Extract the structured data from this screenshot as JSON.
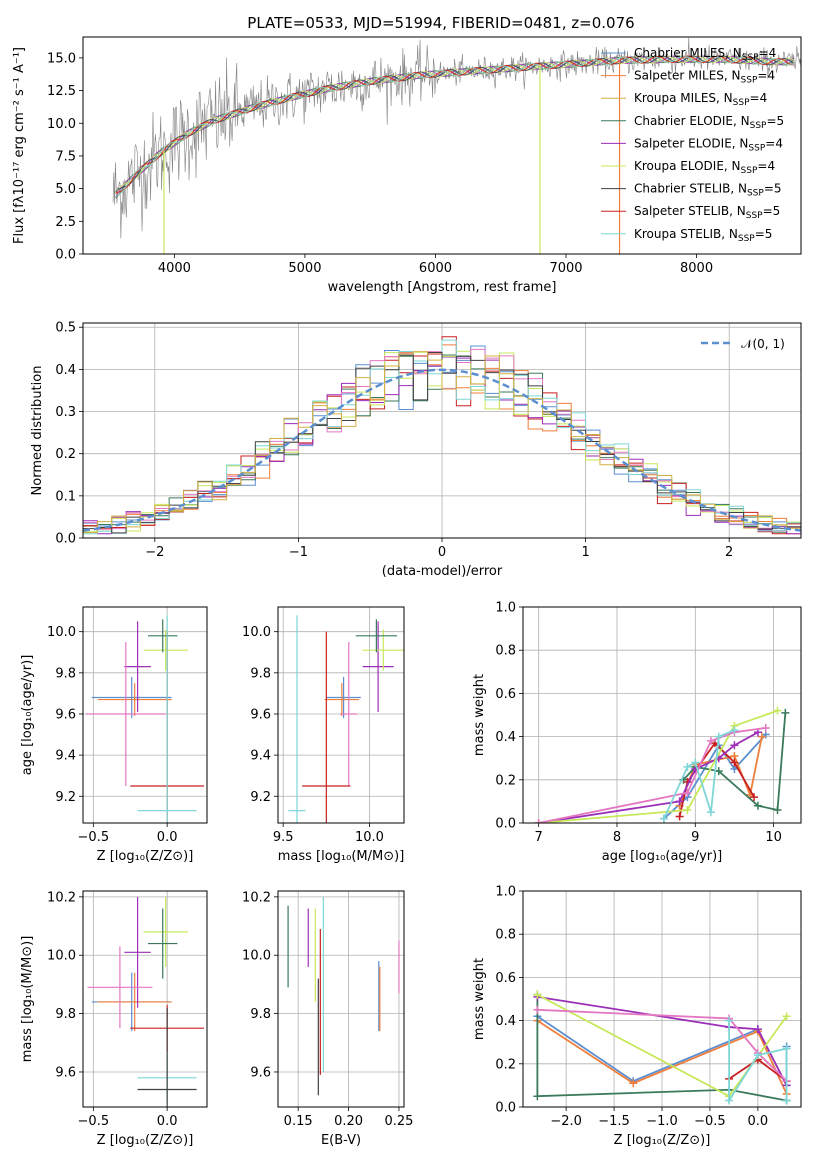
{
  "colors": {
    "gray": "#808080",
    "palette": [
      "#5b8fd0",
      "#f07f3c",
      "#3a9a3a",
      "#c82020",
      "#9c2fb8",
      "#d4b043",
      "#e377c2",
      "#7f7f7f",
      "#c7e85a",
      "#7fd6d6"
    ]
  },
  "chart_data": [
    {
      "type": "line",
      "title": "PLATE=0533, MJD=51994, FIBERID=0481, z=0.076",
      "xlabel": "wavelength [Angstrom, rest frame]",
      "ylabel": "Flux [fλ10⁻¹⁷ erg cm⁻² s⁻¹ A⁻¹]",
      "xlim": [
        3300,
        8800
      ],
      "ylim": [
        0,
        16.6
      ],
      "xticks": [
        4000,
        5000,
        6000,
        7000,
        8000
      ],
      "yticks": [
        0.0,
        2.5,
        5.0,
        7.5,
        10.0,
        12.5,
        15.0
      ],
      "grid": false,
      "legend_position": "upper-right",
      "legend": [
        {
          "label": "Chabrier MILES, N",
          "sub": "SSP",
          "suffix": "=4",
          "color": "#5b8fd0"
        },
        {
          "label": "Salpeter MILES, N",
          "sub": "SSP",
          "suffix": "=4",
          "color": "#f07f3c"
        },
        {
          "label": "Kroupa MILES, N",
          "sub": "SSP",
          "suffix": "=4",
          "color": "#d4b043"
        },
        {
          "label": "Chabrier ELODIE, N",
          "sub": "SSP",
          "suffix": "=5",
          "color": "#3a7a5a"
        },
        {
          "label": "Salpeter ELODIE, N",
          "sub": "SSP",
          "suffix": "=4",
          "color": "#9c2fb8"
        },
        {
          "label": "Kroupa ELODIE, N",
          "sub": "SSP",
          "suffix": "=4",
          "color": "#c7e85a"
        },
        {
          "label": "Chabrier STELIB, N",
          "sub": "SSP",
          "suffix": "=5",
          "color": "#404040"
        },
        {
          "label": "Salpeter STELIB, N",
          "sub": "SSP",
          "suffix": "=5",
          "color": "#c82020"
        },
        {
          "label": "Kroupa STELIB, N",
          "sub": "SSP",
          "suffix": "=5",
          "color": "#7fd6d6"
        }
      ],
      "continuum": {
        "x": [
          3550,
          3700,
          3900,
          4100,
          4300,
          4600,
          4900,
          5200,
          5500,
          5900,
          6300,
          6700,
          7000,
          7400,
          7800,
          8200,
          8600
        ],
        "y": [
          4.5,
          6.0,
          7.8,
          9.2,
          10.2,
          11.2,
          12.0,
          12.7,
          13.2,
          13.7,
          14.0,
          14.3,
          14.5,
          14.8,
          14.9,
          14.9,
          14.7
        ]
      },
      "spikes": [
        {
          "x": 6800,
          "y": 0
        },
        {
          "x": 7410,
          "y": 0
        },
        {
          "x": 3920,
          "y": 0
        }
      ]
    },
    {
      "type": "step",
      "xlabel": "(data-model)/error",
      "ylabel": "Normed distribution",
      "xlim": [
        -2.5,
        2.5
      ],
      "ylim": [
        0,
        0.51
      ],
      "xticks": [
        -2,
        -1,
        0,
        1,
        2
      ],
      "xtick_labels": [
        "−2",
        "−1",
        "0",
        "1",
        "2"
      ],
      "yticks": [
        0.0,
        0.1,
        0.2,
        0.3,
        0.4,
        0.5
      ],
      "grid": true,
      "legend_position": "upper-right",
      "legend": [
        {
          "label": "𝒩(0, 1)",
          "color": "#5b8fd0",
          "dashed": true
        }
      ],
      "bin_width": 0.1,
      "series_colors": [
        "#5b8fd0",
        "#f07f3c",
        "#3a7a5a",
        "#c82020",
        "#9c2fb8",
        "#c7e85a",
        "#e377c2",
        "#7fd6d6",
        "#404040",
        "#d4b043"
      ]
    },
    {
      "type": "errorbar",
      "xlabel": "Z [log₁₀(Z/Z⊙)]",
      "ylabel": "age  [log₁₀(age/yr)]",
      "xlim": [
        -0.57,
        0.27
      ],
      "ylim": [
        9.07,
        10.12
      ],
      "xticks": [
        -0.5,
        0.0
      ],
      "xtick_labels": [
        "−0.5",
        "0.0"
      ],
      "yticks": [
        9.2,
        9.4,
        9.6,
        9.8,
        10.0
      ],
      "grid": true,
      "points": [
        {
          "x": -0.24,
          "y": 9.68,
          "xerr": 0.27,
          "yerr": 0.1,
          "color": "#5b8fd0"
        },
        {
          "x": -0.22,
          "y": 9.67,
          "xerr": 0.25,
          "yerr": 0.08,
          "color": "#f07f3c"
        },
        {
          "x": -0.2,
          "y": 9.83,
          "xerr": 0.09,
          "yerr": 0.22,
          "color": "#9c2fb8"
        },
        {
          "x": -0.28,
          "y": 9.6,
          "xerr": 0.27,
          "yerr": 0.35,
          "color": "#e377c2"
        },
        {
          "x": -0.01,
          "y": 9.91,
          "xerr": 0.15,
          "yerr": 0.1,
          "color": "#c7e85a"
        },
        {
          "x": -0.03,
          "y": 9.98,
          "xerr": 0.1,
          "yerr": 0.08,
          "color": "#3a7a5a"
        },
        {
          "x": 0.0,
          "y": 9.25,
          "xerr": 0.25,
          "yerr": 0.75,
          "color": "#c82020"
        },
        {
          "x": 0.0,
          "y": 9.13,
          "xerr": 0.2,
          "yerr": 0.95,
          "color": "#7fd6d6"
        }
      ]
    },
    {
      "type": "errorbar",
      "xlabel": "mass [log₁₀(M/M⊙)]",
      "ylabel": "",
      "xlim": [
        9.47,
        10.2
      ],
      "ylim": [
        9.07,
        10.12
      ],
      "xticks": [
        9.5,
        10.0
      ],
      "yticks": [
        9.2,
        9.4,
        9.6,
        9.8,
        10.0
      ],
      "grid": true,
      "points": [
        {
          "x": 9.85,
          "y": 9.68,
          "xerr": 0.1,
          "yerr": 0.1,
          "color": "#5b8fd0"
        },
        {
          "x": 9.84,
          "y": 9.67,
          "xerr": 0.1,
          "yerr": 0.08,
          "color": "#f07f3c"
        },
        {
          "x": 10.05,
          "y": 9.83,
          "xerr": 0.09,
          "yerr": 0.22,
          "color": "#9c2fb8"
        },
        {
          "x": 9.88,
          "y": 9.6,
          "xerr": 0.05,
          "yerr": 0.35,
          "color": "#e377c2"
        },
        {
          "x": 10.08,
          "y": 9.91,
          "xerr": 0.12,
          "yerr": 0.1,
          "color": "#c7e85a"
        },
        {
          "x": 10.04,
          "y": 9.98,
          "xerr": 0.12,
          "yerr": 0.08,
          "color": "#3a7a5a"
        },
        {
          "x": 9.75,
          "y": 9.25,
          "xerr": 0.14,
          "yerr": 0.75,
          "color": "#c82020"
        },
        {
          "x": 9.58,
          "y": 9.13,
          "xerr": 0.05,
          "yerr": 0.95,
          "color": "#7fd6d6"
        }
      ]
    },
    {
      "type": "line",
      "xlabel": "age  [log₁₀(age/yr)]",
      "ylabel": "mass weight",
      "xlim": [
        6.8,
        10.35
      ],
      "ylim": [
        0,
        1.0
      ],
      "xticks": [
        7,
        8,
        9,
        10
      ],
      "yticks": [
        0.0,
        0.2,
        0.4,
        0.6,
        0.8,
        1.0
      ],
      "grid": true,
      "series": [
        {
          "color": "#5b8fd0",
          "x": [
            8.6,
            8.9,
            9.3,
            9.5,
            9.9
          ],
          "y": [
            0.02,
            0.12,
            0.36,
            0.25,
            0.41
          ]
        },
        {
          "color": "#f07f3c",
          "x": [
            8.8,
            9.0,
            9.5,
            9.7,
            9.85
          ],
          "y": [
            0.08,
            0.27,
            0.31,
            0.13,
            0.4
          ]
        },
        {
          "color": "#3a7a5a",
          "x": [
            8.85,
            9.0,
            9.3,
            9.8,
            10.05,
            10.15
          ],
          "y": [
            0.2,
            0.26,
            0.24,
            0.08,
            0.06,
            0.51
          ]
        },
        {
          "color": "#c82020",
          "x": [
            8.8,
            8.9,
            9.25,
            9.5,
            9.75
          ],
          "y": [
            0.03,
            0.19,
            0.37,
            0.28,
            0.12
          ]
        },
        {
          "color": "#9c2fb8",
          "x": [
            7.0,
            8.8,
            9.0,
            9.3,
            9.5,
            9.8
          ],
          "y": [
            0.0,
            0.1,
            0.25,
            0.3,
            0.36,
            0.42
          ]
        },
        {
          "color": "#c7e85a",
          "x": [
            7.0,
            8.9,
            9.5,
            10.05
          ],
          "y": [
            0.0,
            0.06,
            0.45,
            0.52
          ]
        },
        {
          "color": "#e377c2",
          "x": [
            7.0,
            8.9,
            9.2,
            9.5,
            9.9
          ],
          "y": [
            0.0,
            0.14,
            0.38,
            0.42,
            0.44
          ]
        },
        {
          "color": "#7fd6d6",
          "x": [
            8.6,
            8.9,
            9.0,
            9.2,
            9.3,
            9.5
          ],
          "y": [
            0.02,
            0.26,
            0.28,
            0.05,
            0.4,
            0.43
          ]
        }
      ]
    },
    {
      "type": "errorbar",
      "xlabel": "Z [log₁₀(Z/Z⊙)]",
      "ylabel": "mass [log₁₀(M/M⊙)]",
      "xlim": [
        -0.57,
        0.27
      ],
      "ylim": [
        9.48,
        10.22
      ],
      "xticks": [
        -0.5,
        0.0
      ],
      "xtick_labels": [
        "−0.5",
        "0.0"
      ],
      "yticks": [
        9.6,
        9.8,
        10.0,
        10.2
      ],
      "grid": true,
      "points": [
        {
          "x": -0.24,
          "y": 9.84,
          "xerr": 0.27,
          "yerr": 0.1,
          "color": "#5b8fd0"
        },
        {
          "x": -0.22,
          "y": 9.84,
          "xerr": 0.25,
          "yerr": 0.1,
          "color": "#f07f3c"
        },
        {
          "x": -0.2,
          "y": 10.01,
          "xerr": 0.09,
          "yerr": 0.19,
          "color": "#9c2fb8"
        },
        {
          "x": -0.32,
          "y": 9.89,
          "xerr": 0.22,
          "yerr": 0.14,
          "color": "#e377c2"
        },
        {
          "x": -0.01,
          "y": 10.08,
          "xerr": 0.15,
          "yerr": 0.12,
          "color": "#c7e85a"
        },
        {
          "x": -0.03,
          "y": 10.04,
          "xerr": 0.1,
          "yerr": 0.12,
          "color": "#3a7a5a"
        },
        {
          "x": 0.0,
          "y": 9.75,
          "xerr": 0.25,
          "yerr": 0.08,
          "color": "#c82020"
        },
        {
          "x": 0.0,
          "y": 9.58,
          "xerr": 0.2,
          "yerr": 0.08,
          "color": "#7fd6d6"
        },
        {
          "x": 0.0,
          "y": 9.54,
          "xerr": 0.2,
          "yerr": 0.28,
          "color": "#404040"
        }
      ]
    },
    {
      "type": "errorbar",
      "xlabel": "E(B-V)",
      "ylabel": "",
      "xlim": [
        0.13,
        0.255
      ],
      "ylim": [
        9.48,
        10.22
      ],
      "xticks": [
        0.15,
        0.2,
        0.25
      ],
      "xtick_labels": [
        "0.15",
        "0.20",
        "0.25"
      ],
      "yticks": [
        9.6,
        9.8,
        10.0,
        10.2
      ],
      "grid": true,
      "points": [
        {
          "x": 0.14,
          "y": 10.03,
          "yerr": 0.14,
          "color": "#3a7a5a"
        },
        {
          "x": 0.16,
          "y": 10.06,
          "yerr": 0.1,
          "color": "#9c2fb8"
        },
        {
          "x": 0.167,
          "y": 10.0,
          "yerr": 0.16,
          "color": "#c7e85a"
        },
        {
          "x": 0.17,
          "y": 9.72,
          "yerr": 0.2,
          "color": "#404040"
        },
        {
          "x": 0.172,
          "y": 9.84,
          "yerr": 0.25,
          "color": "#c82020"
        },
        {
          "x": 0.175,
          "y": 9.9,
          "yerr": 0.3,
          "color": "#7fd6d6"
        },
        {
          "x": 0.23,
          "y": 9.86,
          "yerr": 0.12,
          "color": "#5b8fd0"
        },
        {
          "x": 0.231,
          "y": 9.85,
          "yerr": 0.11,
          "color": "#f07f3c"
        },
        {
          "x": 0.25,
          "y": 9.96,
          "yerr": 0.09,
          "color": "#e377c2"
        }
      ]
    },
    {
      "type": "line",
      "xlabel": "Z [log₁₀(Z/Z⊙)]",
      "ylabel": "mass weight",
      "xlim": [
        -2.45,
        0.45
      ],
      "ylim": [
        0,
        1.0
      ],
      "xticks": [
        -2.0,
        -1.5,
        -1.0,
        -0.5,
        0.0
      ],
      "xtick_labels": [
        "−2.0",
        "−1.5",
        "−1.0",
        "−0.5",
        "0.0"
      ],
      "yticks": [
        0.0,
        0.2,
        0.4,
        0.6,
        0.8,
        1.0
      ],
      "grid": true,
      "series": [
        {
          "color": "#5b8fd0",
          "x": [
            -2.3,
            -1.3,
            0.0,
            0.3,
            0.3
          ],
          "y": [
            0.42,
            0.12,
            0.36,
            0.1,
            0.28
          ]
        },
        {
          "color": "#f07f3c",
          "x": [
            -2.3,
            -1.3,
            0.0,
            0.3
          ],
          "y": [
            0.4,
            0.11,
            0.35,
            0.06
          ]
        },
        {
          "color": "#3a7a5a",
          "x": [
            -2.3,
            -2.3,
            -0.3,
            0.3
          ],
          "y": [
            0.52,
            0.05,
            0.08,
            0.03
          ]
        },
        {
          "color": "#c82020",
          "x": [
            -0.3,
            0.0,
            0.3
          ],
          "y": [
            0.13,
            0.22,
            0.12
          ]
        },
        {
          "color": "#9c2fb8",
          "x": [
            -2.3,
            -0.3,
            0.0,
            0.3
          ],
          "y": [
            0.51,
            0.37,
            0.36,
            0.1
          ]
        },
        {
          "color": "#c7e85a",
          "x": [
            -2.3,
            -0.3,
            0.3
          ],
          "y": [
            0.52,
            0.05,
            0.42
          ]
        },
        {
          "color": "#e377c2",
          "x": [
            -2.3,
            -0.3,
            0.0,
            0.3
          ],
          "y": [
            0.45,
            0.41,
            0.25,
            0.12
          ]
        },
        {
          "color": "#7fd6d6",
          "x": [
            -0.3,
            -0.3,
            0.0,
            0.3,
            0.3
          ],
          "y": [
            0.4,
            0.03,
            0.24,
            0.27,
            0.03
          ]
        }
      ]
    }
  ]
}
